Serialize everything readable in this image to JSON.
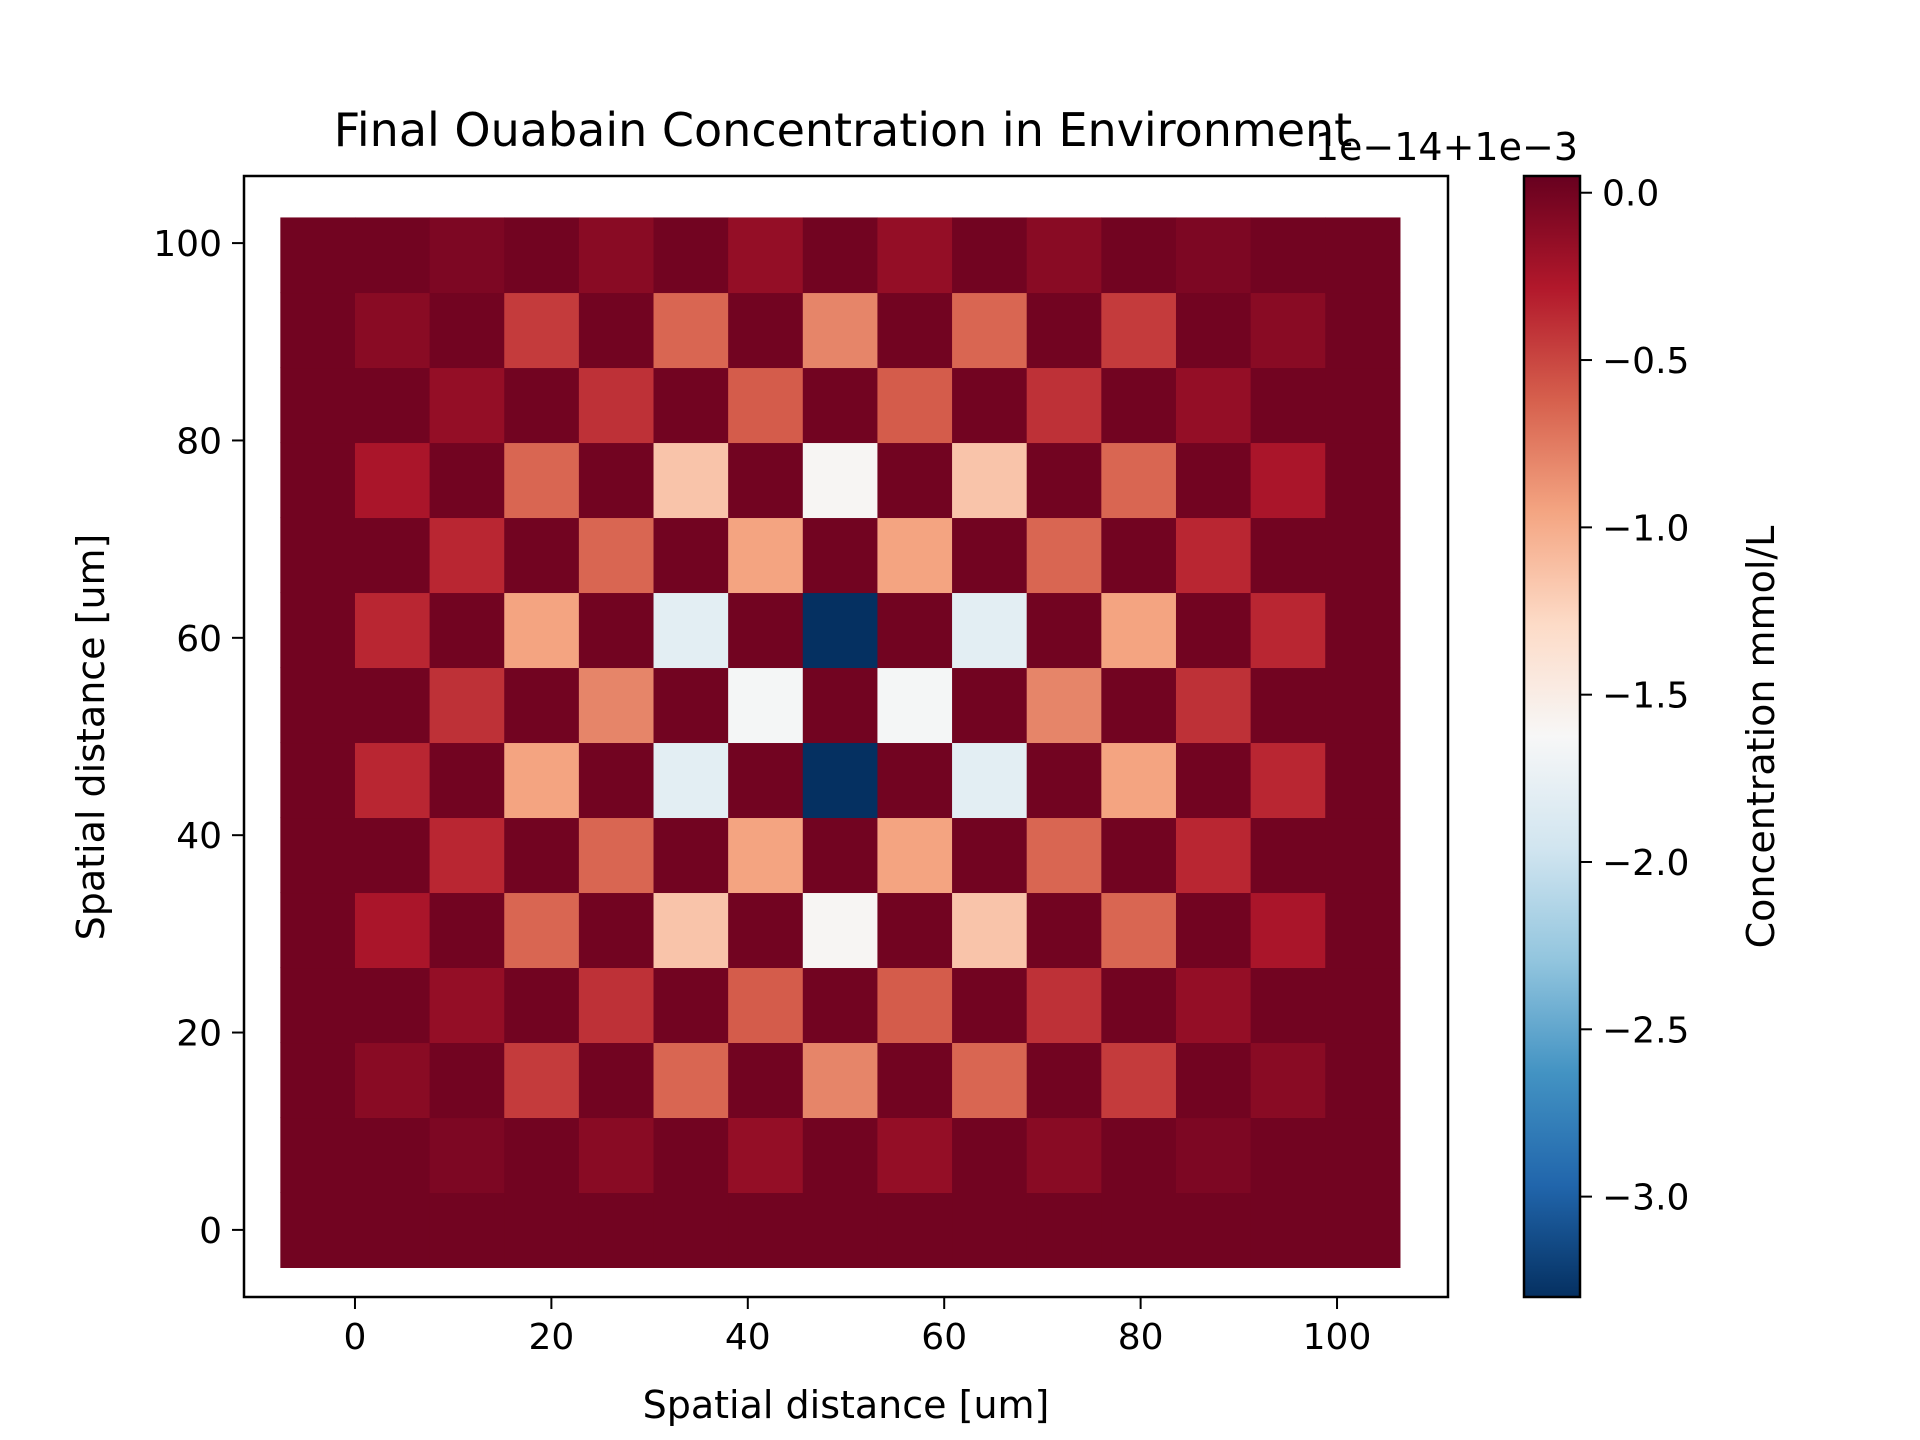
{
  "chart_data": {
    "type": "heatmap",
    "title": "Final Ouabain Concentration in Environment",
    "xlabel": "Spatial distance [um]",
    "ylabel": "Spatial distance [um]",
    "colorbar_label": "Concentration mmol/L",
    "offset_label": "1e−14+1e−3",
    "colormap": "RdBu_r",
    "xlim": [
      -11.3,
      111.3
    ],
    "ylim": [
      -6.8,
      106.8
    ],
    "x_ticks": [
      0,
      20,
      40,
      60,
      80,
      100
    ],
    "x_tick_labels": [
      "0",
      "20",
      "40",
      "60",
      "80",
      "100"
    ],
    "y_ticks": [
      0,
      20,
      40,
      60,
      80,
      100
    ],
    "y_tick_labels": [
      "0",
      "20",
      "40",
      "60",
      "80",
      "100"
    ],
    "cbar_range": [
      -3.3,
      0.05
    ],
    "cbar_ticks": [
      0.0,
      -0.5,
      -1.0,
      -1.5,
      -2.0,
      -2.5,
      -3.0
    ],
    "cbar_tick_labels": [
      "0.0",
      "−0.5",
      "−1.0",
      "−1.5",
      "−2.0",
      "−2.5",
      "−3.0"
    ],
    "grid": false,
    "cell_size": 7.6,
    "grid_x": [
      -3.8,
      3.8,
      11.4,
      19.0,
      26.6,
      34.2,
      41.8,
      49.4,
      57.0,
      64.6,
      72.2,
      79.8,
      87.4,
      95.0,
      102.6
    ],
    "grid_y": [
      0,
      7.6,
      15.2,
      22.8,
      30.4,
      38.0,
      45.6,
      53.2,
      60.8,
      68.4,
      76.0,
      83.6,
      91.2,
      98.8
    ],
    "values": [
      [
        0.0,
        0.0,
        0.0,
        0.0,
        0.0,
        0.0,
        0.0,
        0.0,
        0.0,
        0.0,
        0.0,
        0.0,
        0.0,
        0.0,
        0.0
      ],
      [
        0.0,
        0.0,
        -0.05,
        0.0,
        -0.1,
        0.0,
        -0.15,
        0.0,
        -0.15,
        0.0,
        -0.1,
        0.0,
        -0.05,
        0.0,
        0.0
      ],
      [
        0.0,
        -0.1,
        0.0,
        -0.45,
        0.0,
        -0.65,
        0.0,
        -0.8,
        0.0,
        -0.65,
        0.0,
        -0.45,
        0.0,
        -0.1,
        0.0
      ],
      [
        0.0,
        0.0,
        -0.15,
        0.0,
        -0.4,
        0.0,
        -0.6,
        0.0,
        -0.6,
        0.0,
        -0.4,
        0.0,
        -0.15,
        0.0,
        0.0
      ],
      [
        0.0,
        -0.25,
        0.0,
        -0.65,
        0.0,
        -1.15,
        0.0,
        -1.6,
        0.0,
        -1.15,
        0.0,
        -0.65,
        0.0,
        -0.25,
        0.0
      ],
      [
        0.0,
        0.0,
        -0.35,
        0.0,
        -0.65,
        0.0,
        -0.95,
        0.0,
        -0.95,
        0.0,
        -0.65,
        0.0,
        -0.35,
        0.0,
        0.0
      ],
      [
        0.0,
        -0.35,
        0.0,
        -0.95,
        0.0,
        -1.8,
        0.0,
        -3.3,
        0.0,
        -1.8,
        0.0,
        -0.95,
        0.0,
        -0.35,
        0.0
      ],
      [
        0.0,
        0.0,
        -0.4,
        0.0,
        -0.8,
        0.0,
        -1.65,
        0.0,
        -1.65,
        0.0,
        -0.8,
        0.0,
        -0.4,
        0.0,
        0.0
      ],
      [
        0.0,
        -0.35,
        0.0,
        -0.95,
        0.0,
        -1.8,
        0.0,
        -3.3,
        0.0,
        -1.8,
        0.0,
        -0.95,
        0.0,
        -0.35,
        0.0
      ],
      [
        0.0,
        0.0,
        -0.35,
        0.0,
        -0.65,
        0.0,
        -0.95,
        0.0,
        -0.95,
        0.0,
        -0.65,
        0.0,
        -0.35,
        0.0,
        0.0
      ],
      [
        0.0,
        -0.25,
        0.0,
        -0.65,
        0.0,
        -1.15,
        0.0,
        -1.6,
        0.0,
        -1.15,
        0.0,
        -0.65,
        0.0,
        -0.25,
        0.0
      ],
      [
        0.0,
        0.0,
        -0.15,
        0.0,
        -0.4,
        0.0,
        -0.6,
        0.0,
        -0.6,
        0.0,
        -0.4,
        0.0,
        -0.15,
        0.0,
        0.0
      ],
      [
        0.0,
        -0.1,
        0.0,
        -0.45,
        0.0,
        -0.65,
        0.0,
        -0.8,
        0.0,
        -0.65,
        0.0,
        -0.45,
        0.0,
        -0.1,
        0.0
      ],
      [
        0.0,
        0.0,
        -0.05,
        0.0,
        -0.1,
        0.0,
        -0.15,
        0.0,
        -0.15,
        0.0,
        -0.1,
        0.0,
        -0.05,
        0.0,
        0.0
      ]
    ]
  }
}
